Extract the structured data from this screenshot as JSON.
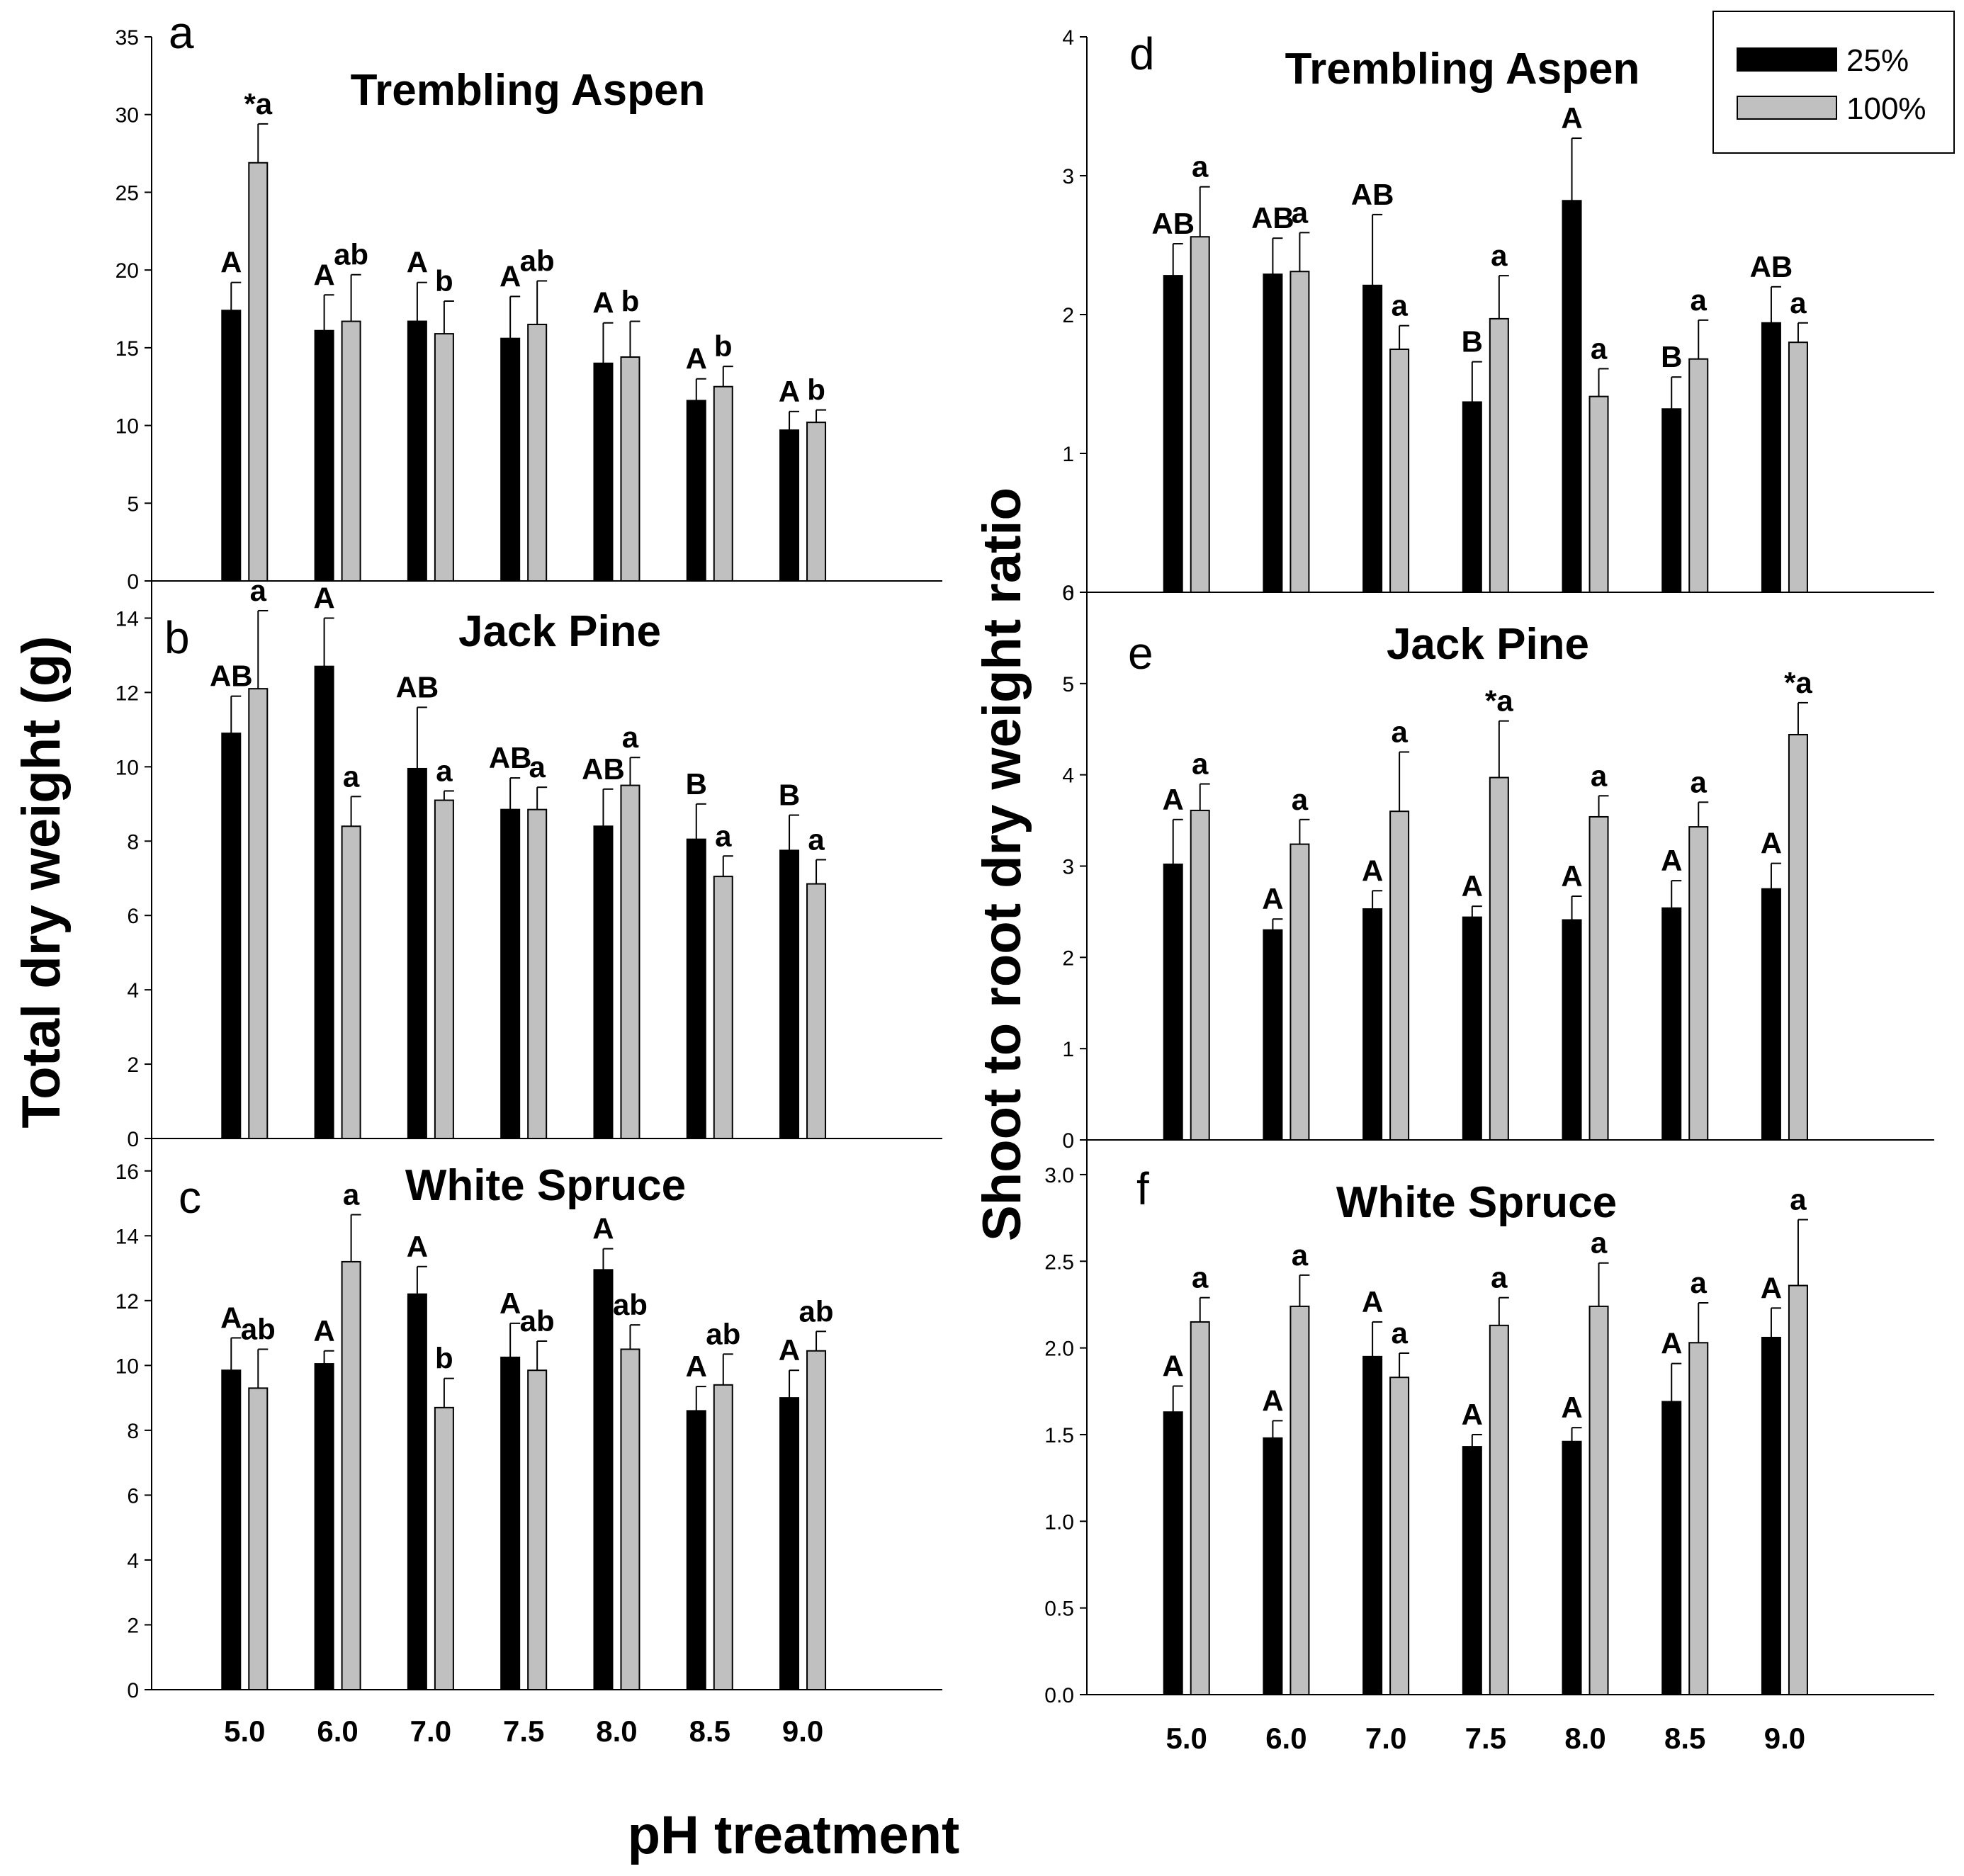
{
  "figure": {
    "ylabel_left": "Total dry weight (g)",
    "ylabel_right": "Shoot to root dry weight ratio",
    "xlabel": "pH treatment",
    "colors": {
      "s25": "#000000",
      "s100": "#c0c0c0"
    }
  },
  "legend": {
    "entries": [
      "25%",
      "100%"
    ]
  },
  "chart_data": [
    {
      "type": "bar",
      "panel": "a",
      "title": "Trembling Aspen",
      "categories": [
        "5.0",
        "6.0",
        "7.0",
        "7.5",
        "8.0",
        "8.5",
        "9.0"
      ],
      "ylim": [
        0,
        35
      ],
      "yticks": [
        "0",
        "5",
        "10",
        "15",
        "20",
        "25",
        "30",
        "35"
      ],
      "series": [
        {
          "name": "25%",
          "values": [
            17.4,
            16.1,
            16.7,
            15.6,
            14.0,
            11.6,
            9.7
          ],
          "errors": [
            1.8,
            2.3,
            2.5,
            2.7,
            2.6,
            1.4,
            1.2
          ],
          "labels": [
            "A",
            "A",
            "A",
            "A",
            "A",
            "A",
            "A"
          ]
        },
        {
          "name": "100%",
          "values": [
            26.9,
            16.7,
            15.9,
            16.5,
            14.4,
            12.5,
            10.2
          ],
          "errors": [
            2.5,
            3.0,
            2.1,
            2.8,
            2.3,
            1.3,
            0.8
          ],
          "labels": [
            "*a",
            "ab",
            "b",
            "ab",
            "b",
            "b",
            "b"
          ]
        }
      ]
    },
    {
      "type": "bar",
      "panel": "b",
      "title": "Jack Pine",
      "categories": [
        "5.0",
        "6.0",
        "7.0",
        "7.5",
        "8.0",
        "8.5",
        "9.0"
      ],
      "ylim": [
        0,
        15
      ],
      "yticks": [
        "0",
        "2",
        "4",
        "6",
        "8",
        "10",
        "12",
        "14"
      ],
      "series": [
        {
          "name": "25%",
          "values": [
            10.9,
            12.7,
            9.95,
            8.85,
            8.4,
            8.05,
            7.75
          ],
          "errors": [
            1.0,
            1.3,
            1.65,
            0.85,
            1.0,
            0.95,
            0.95
          ],
          "labels": [
            "AB",
            "A",
            "AB",
            "AB",
            "AB",
            "B",
            "B"
          ]
        },
        {
          "name": "100%",
          "values": [
            12.1,
            8.4,
            9.1,
            8.85,
            9.5,
            7.05,
            6.85
          ],
          "errors": [
            2.1,
            0.8,
            0.25,
            0.6,
            0.75,
            0.55,
            0.65
          ],
          "labels": [
            "a",
            "a",
            "a",
            "a",
            "a",
            "a",
            "a"
          ]
        }
      ]
    },
    {
      "type": "bar",
      "panel": "c",
      "title": "White Spruce",
      "categories": [
        "5.0",
        "6.0",
        "7.0",
        "7.5",
        "8.0",
        "8.5",
        "9.0"
      ],
      "ylim": [
        0,
        17
      ],
      "yticks": [
        "0",
        "2",
        "4",
        "6",
        "8",
        "10",
        "12",
        "14",
        "16"
      ],
      "series": [
        {
          "name": "25%",
          "values": [
            9.85,
            10.05,
            12.2,
            10.25,
            12.95,
            8.6,
            9.0
          ],
          "errors": [
            1.0,
            0.4,
            0.85,
            1.05,
            0.65,
            0.75,
            0.85
          ],
          "labels": [
            "A",
            "A",
            "A",
            "A",
            "A",
            "A",
            "A"
          ]
        },
        {
          "name": "100%",
          "values": [
            9.3,
            13.2,
            8.7,
            9.85,
            10.5,
            9.4,
            10.45
          ],
          "errors": [
            1.2,
            1.45,
            0.9,
            0.9,
            0.75,
            0.95,
            0.6
          ],
          "labels": [
            "ab",
            "a",
            "b",
            "ab",
            "ab",
            "ab",
            "ab"
          ]
        }
      ]
    },
    {
      "type": "bar",
      "panel": "d",
      "title": "Trembling Aspen",
      "categories": [
        "5.0",
        "6.0",
        "7.0",
        "7.5",
        "8.0",
        "8.5",
        "9.0"
      ],
      "ylim": [
        0,
        4
      ],
      "yticks": [
        "0",
        "1",
        "2",
        "3",
        "4"
      ],
      "series": [
        {
          "name": "25%",
          "values": [
            2.28,
            2.29,
            2.21,
            1.37,
            2.82,
            1.32,
            1.94
          ],
          "errors": [
            0.23,
            0.26,
            0.51,
            0.29,
            0.45,
            0.23,
            0.26
          ],
          "labels": [
            "AB",
            "AB",
            "AB",
            "B",
            "A",
            "B",
            "AB"
          ]
        },
        {
          "name": "100%",
          "values": [
            2.56,
            2.31,
            1.75,
            1.97,
            1.41,
            1.68,
            1.8
          ],
          "errors": [
            0.36,
            0.28,
            0.17,
            0.31,
            0.2,
            0.28,
            0.14
          ],
          "labels": [
            "a",
            "a",
            "a",
            "a",
            "a",
            "a",
            "a"
          ]
        }
      ]
    },
    {
      "type": "bar",
      "panel": "e",
      "title": "Jack Pine",
      "categories": [
        "5.0",
        "6.0",
        "7.0",
        "7.5",
        "8.0",
        "8.5",
        "9.0"
      ],
      "ylim": [
        0,
        6
      ],
      "yticks": [
        "0",
        "1",
        "2",
        "3",
        "4",
        "5",
        "6"
      ],
      "series": [
        {
          "name": "25%",
          "values": [
            3.02,
            2.3,
            2.53,
            2.44,
            2.41,
            2.54,
            2.75
          ],
          "errors": [
            0.49,
            0.12,
            0.2,
            0.12,
            0.26,
            0.3,
            0.28
          ],
          "labels": [
            "A",
            "A",
            "A",
            "A",
            "A",
            "A",
            "A"
          ]
        },
        {
          "name": "100%",
          "values": [
            3.61,
            3.24,
            3.6,
            3.97,
            3.54,
            3.43,
            4.44
          ],
          "errors": [
            0.29,
            0.27,
            0.65,
            0.62,
            0.23,
            0.27,
            0.35
          ],
          "labels": [
            "a",
            "a",
            "a",
            "*a",
            "a",
            "a",
            "*a"
          ]
        }
      ]
    },
    {
      "type": "bar",
      "panel": "f",
      "title": "White Spruce",
      "categories": [
        "5.0",
        "6.0",
        "7.0",
        "7.5",
        "8.0",
        "8.5",
        "9.0"
      ],
      "ylim": [
        0,
        3.2
      ],
      "yticks": [
        "0.0",
        "0.5",
        "1.0",
        "1.5",
        "2.0",
        "2.5",
        "3.0"
      ],
      "series": [
        {
          "name": "25%",
          "values": [
            1.63,
            1.48,
            1.95,
            1.43,
            1.46,
            1.69,
            2.06
          ],
          "errors": [
            0.15,
            0.1,
            0.2,
            0.07,
            0.08,
            0.22,
            0.17
          ],
          "labels": [
            "A",
            "A",
            "A",
            "A",
            "A",
            "A",
            "A"
          ]
        },
        {
          "name": "100%",
          "values": [
            2.15,
            2.24,
            1.83,
            2.13,
            2.24,
            2.03,
            2.36
          ],
          "errors": [
            0.14,
            0.18,
            0.14,
            0.16,
            0.25,
            0.23,
            0.38
          ],
          "labels": [
            "a",
            "a",
            "a",
            "a",
            "a",
            "a",
            "a"
          ]
        }
      ]
    }
  ]
}
